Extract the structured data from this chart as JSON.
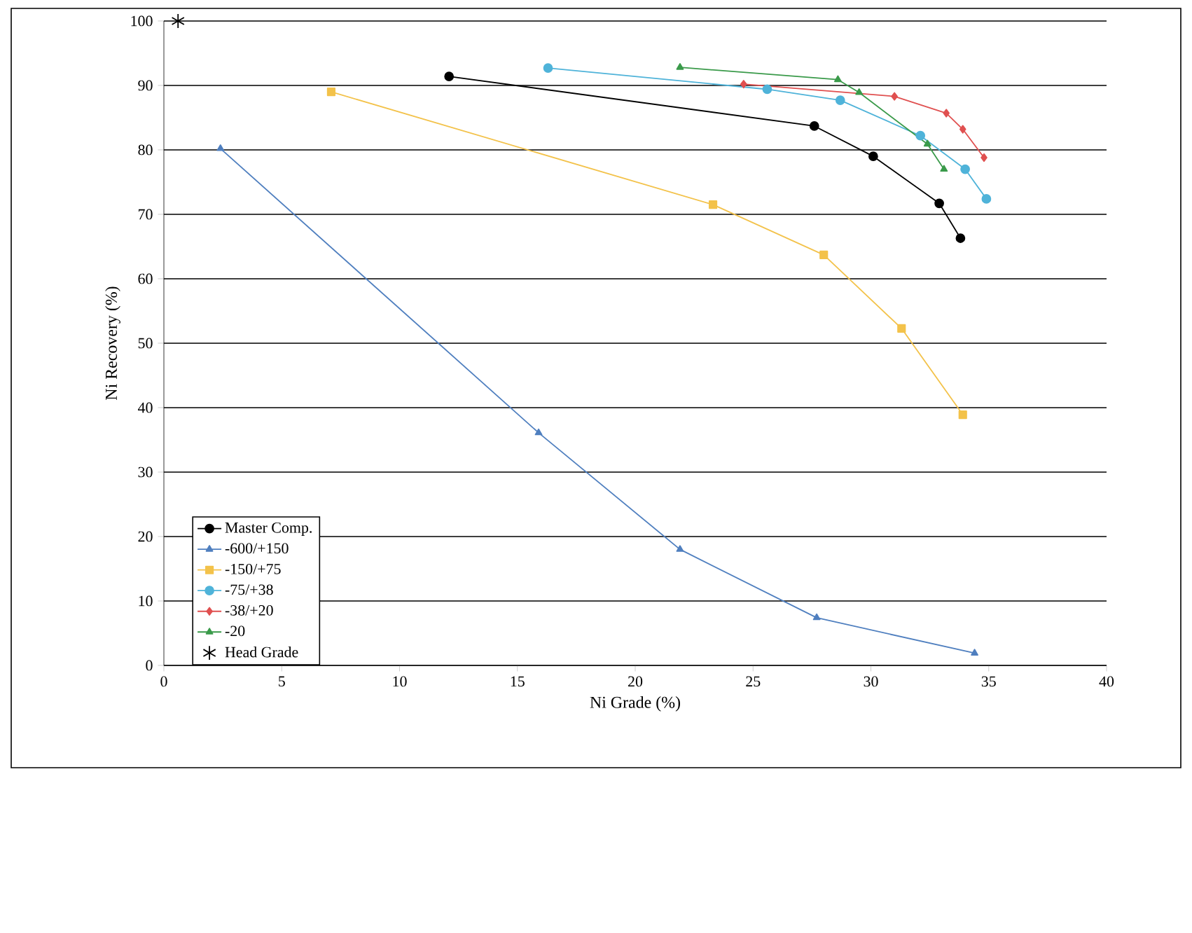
{
  "chart_data": {
    "type": "line",
    "xlabel": "Ni Grade (%)",
    "ylabel": "Ni Recovery (%)",
    "xlim": [
      0,
      40
    ],
    "ylim": [
      0,
      100
    ],
    "xticks": [
      0,
      5,
      10,
      15,
      20,
      25,
      30,
      35,
      40
    ],
    "yticks": [
      0,
      10,
      20,
      30,
      40,
      50,
      60,
      70,
      80,
      90,
      100
    ],
    "grid": "y",
    "legend": "bottom left",
    "series": [
      {
        "name": "Master Comp.",
        "color": "#000000",
        "marker": "circle",
        "x": [
          12.1,
          27.6,
          30.1,
          32.9,
          33.8
        ],
        "values": [
          91.4,
          83.7,
          79,
          71.7,
          66.3
        ]
      },
      {
        "name": "-600/+150",
        "color": "#4f7fbf",
        "marker": "triangle",
        "x": [
          2.4,
          15.9,
          21.9,
          27.7,
          34.4
        ],
        "values": [
          80.2,
          36.1,
          18,
          7.4,
          1.9
        ]
      },
      {
        "name": "-150/+75",
        "color": "#f3c24a",
        "marker": "square",
        "x": [
          7.1,
          23.3,
          28,
          31.3,
          33.9
        ],
        "values": [
          89,
          71.5,
          63.7,
          52.3,
          38.9
        ]
      },
      {
        "name": "-75/+38",
        "color": "#4fb3d9",
        "marker": "circle",
        "x": [
          16.3,
          25.6,
          28.7,
          32.1,
          34,
          34.9
        ],
        "values": [
          92.7,
          89.4,
          87.7,
          82.2,
          77,
          72.4
        ]
      },
      {
        "name": "-38/+20",
        "color": "#e05050",
        "marker": "diamond",
        "x": [
          24.6,
          31,
          33.2,
          33.9,
          34.8
        ],
        "values": [
          90.2,
          88.3,
          85.7,
          83.2,
          78.8
        ]
      },
      {
        "name": "-20",
        "color": "#3a9a4a",
        "marker": "triangle",
        "x": [
          21.9,
          28.6,
          29.5,
          32.4,
          33.1
        ],
        "values": [
          92.8,
          90.9,
          88.9,
          80.9,
          77
        ]
      },
      {
        "name": "Head Grade",
        "type": "scatter",
        "color": "#000000",
        "marker": "cross",
        "x": [
          0.6
        ],
        "values": [
          100
        ]
      }
    ]
  }
}
